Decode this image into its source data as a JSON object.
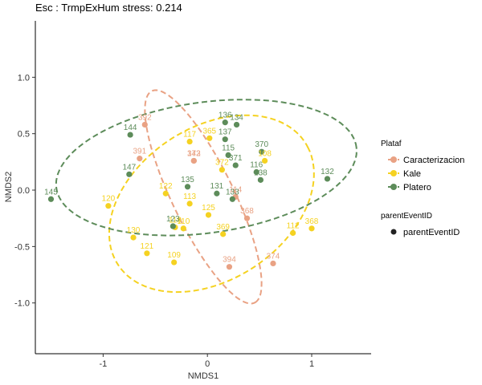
{
  "chart_data": {
    "type": "scatter",
    "title": "Esc : TrmpExHum stress: 0.214",
    "xlabel": "NMDS1",
    "ylabel": "NMDS2",
    "xlim": [
      -1.65,
      1.57
    ],
    "ylim": [
      -1.45,
      1.5
    ],
    "xticks": [
      -1,
      0,
      1
    ],
    "yticks": [
      -1.0,
      -0.5,
      0.0,
      0.5,
      1.0
    ],
    "xtick_labels": [
      "-1",
      "0",
      "1"
    ],
    "ytick_labels": [
      "-1.0",
      "-0.5",
      "0.0",
      "0.5",
      "1.0"
    ],
    "grid": false,
    "legend": {
      "position": "right",
      "title": "Plataf",
      "items": [
        "Caracterizacion",
        "Kale",
        "Platero"
      ],
      "title2": "parentEventID",
      "items2": [
        "parentEventID"
      ]
    },
    "series": [
      {
        "name": "Caracterizacion",
        "color": "#E9A284",
        "points": [
          {
            "label": "392",
            "x": -0.6,
            "y": 0.58
          },
          {
            "label": "391",
            "x": -0.65,
            "y": 0.28
          },
          {
            "label": "373",
            "x": -0.13,
            "y": 0.26
          },
          {
            "label": "142",
            "x": -0.13,
            "y": 0.26
          },
          {
            "label": "114",
            "x": 0.27,
            "y": -0.06
          },
          {
            "label": "368",
            "x": 0.38,
            "y": -0.25
          },
          {
            "label": "394",
            "x": 0.21,
            "y": -0.68
          },
          {
            "label": "374",
            "x": 0.63,
            "y": -0.65
          }
        ],
        "ellipse": {
          "cx": -0.04,
          "cy": -0.06,
          "rx": 1.06,
          "ry": 0.29,
          "angle_deg": -62
        }
      },
      {
        "name": "Kale",
        "color": "#F5D221",
        "points": [
          {
            "label": "117",
            "x": -0.17,
            "y": 0.43
          },
          {
            "label": "365",
            "x": 0.02,
            "y": 0.46
          },
          {
            "label": "108",
            "x": 0.55,
            "y": 0.26
          },
          {
            "label": "372",
            "x": 0.14,
            "y": 0.18
          },
          {
            "label": "120",
            "x": -0.95,
            "y": -0.14
          },
          {
            "label": "122",
            "x": -0.4,
            "y": -0.03
          },
          {
            "label": "113",
            "x": -0.17,
            "y": -0.12
          },
          {
            "label": "125",
            "x": 0.01,
            "y": -0.22
          },
          {
            "label": "130",
            "x": -0.71,
            "y": -0.42
          },
          {
            "label": "118",
            "x": -0.31,
            "y": -0.33
          },
          {
            "label": "110",
            "x": -0.23,
            "y": -0.34
          },
          {
            "label": "369",
            "x": 0.15,
            "y": -0.39
          },
          {
            "label": "121",
            "x": -0.58,
            "y": -0.56
          },
          {
            "label": "109",
            "x": -0.32,
            "y": -0.64
          },
          {
            "label": "112",
            "x": 0.82,
            "y": -0.38
          },
          {
            "label": "368",
            "x": 1.0,
            "y": -0.34
          }
        ],
        "ellipse": {
          "cx": 0.04,
          "cy": -0.12,
          "rx": 1.05,
          "ry": 0.69,
          "angle_deg": 28
        }
      },
      {
        "name": "Platero",
        "color": "#5D8C5A",
        "points": [
          {
            "label": "136",
            "x": 0.17,
            "y": 0.6
          },
          {
            "label": "134",
            "x": 0.28,
            "y": 0.58
          },
          {
            "label": "144",
            "x": -0.74,
            "y": 0.49
          },
          {
            "label": "137",
            "x": 0.17,
            "y": 0.45
          },
          {
            "label": "115",
            "x": 0.2,
            "y": 0.31
          },
          {
            "label": "370",
            "x": 0.52,
            "y": 0.34
          },
          {
            "label": "371",
            "x": 0.27,
            "y": 0.22
          },
          {
            "label": "147",
            "x": -0.75,
            "y": 0.14
          },
          {
            "label": "135",
            "x": -0.19,
            "y": 0.03
          },
          {
            "label": "131",
            "x": 0.09,
            "y": -0.03
          },
          {
            "label": "116",
            "x": 0.47,
            "y": 0.16
          },
          {
            "label": "138",
            "x": 0.51,
            "y": 0.09
          },
          {
            "label": "133",
            "x": 0.24,
            "y": -0.08
          },
          {
            "label": "132",
            "x": 1.15,
            "y": 0.1
          },
          {
            "label": "145",
            "x": -1.5,
            "y": -0.08
          },
          {
            "label": "123",
            "x": -0.33,
            "y": -0.32
          }
        ],
        "ellipse": {
          "cx": -0.01,
          "cy": 0.2,
          "rx": 1.45,
          "ry": 0.58,
          "angle_deg": 7
        }
      }
    ]
  }
}
